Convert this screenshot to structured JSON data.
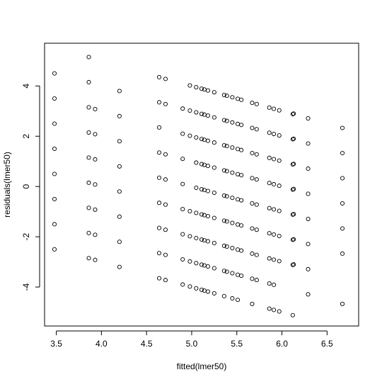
{
  "chart_data": {
    "type": "scatter",
    "xlabel": "fitted(lmer50)",
    "ylabel": "residuals(lmer50)",
    "xlim": [
      3.37,
      6.85
    ],
    "ylim": [
      -5.55,
      5.7
    ],
    "x_ticks": [
      3.5,
      4.0,
      4.5,
      5.0,
      5.5,
      6.0,
      6.5
    ],
    "x_tick_labels": [
      "3.5",
      "4.0",
      "4.5",
      "5.0",
      "5.5",
      "6.0",
      "6.5"
    ],
    "y_ticks": [
      -4,
      -2,
      0,
      2,
      4
    ],
    "y_tick_labels": [
      "-4",
      "-2",
      "0",
      "2",
      "4"
    ],
    "grid": false,
    "legend": "none",
    "marker": "open-circle",
    "color": "#000000",
    "points": [
      [
        3.48,
        4.5
      ],
      [
        3.48,
        3.5
      ],
      [
        3.48,
        2.5
      ],
      [
        3.48,
        1.5
      ],
      [
        3.48,
        0.5
      ],
      [
        3.48,
        -0.5
      ],
      [
        3.48,
        -1.5
      ],
      [
        3.48,
        -2.5
      ],
      [
        3.86,
        5.15
      ],
      [
        3.86,
        4.15
      ],
      [
        3.86,
        3.15
      ],
      [
        3.86,
        2.15
      ],
      [
        3.86,
        1.15
      ],
      [
        3.86,
        0.15
      ],
      [
        3.86,
        -0.85
      ],
      [
        3.86,
        -1.85
      ],
      [
        3.86,
        -2.85
      ],
      [
        3.93,
        3.08
      ],
      [
        3.93,
        2.08
      ],
      [
        3.93,
        1.08
      ],
      [
        3.93,
        0.08
      ],
      [
        3.93,
        -0.92
      ],
      [
        3.93,
        -1.92
      ],
      [
        3.93,
        -2.92
      ],
      [
        4.2,
        3.8
      ],
      [
        4.2,
        2.8
      ],
      [
        4.2,
        1.8
      ],
      [
        4.2,
        0.8
      ],
      [
        4.2,
        -0.2
      ],
      [
        4.2,
        -1.2
      ],
      [
        4.2,
        -2.2
      ],
      [
        4.2,
        -3.2
      ],
      [
        4.64,
        4.35
      ],
      [
        4.64,
        3.35
      ],
      [
        4.64,
        2.35
      ],
      [
        4.64,
        1.35
      ],
      [
        4.64,
        0.35
      ],
      [
        4.64,
        -0.65
      ],
      [
        4.64,
        -1.65
      ],
      [
        4.64,
        -2.65
      ],
      [
        4.64,
        -3.65
      ],
      [
        4.71,
        4.28
      ],
      [
        4.71,
        3.28
      ],
      [
        4.71,
        1.28
      ],
      [
        4.71,
        0.28
      ],
      [
        4.71,
        -0.72
      ],
      [
        4.71,
        -1.72
      ],
      [
        4.71,
        -2.72
      ],
      [
        4.71,
        -3.72
      ],
      [
        4.9,
        3.1
      ],
      [
        4.9,
        2.1
      ],
      [
        4.9,
        1.1
      ],
      [
        4.9,
        0.1
      ],
      [
        4.9,
        -0.9
      ],
      [
        4.9,
        -1.9
      ],
      [
        4.9,
        -2.9
      ],
      [
        4.9,
        -3.9
      ],
      [
        4.98,
        4.02
      ],
      [
        4.98,
        3.02
      ],
      [
        4.98,
        2.02
      ],
      [
        4.98,
        -0.98
      ],
      [
        4.98,
        -1.98
      ],
      [
        4.98,
        -2.98
      ],
      [
        4.98,
        -3.98
      ],
      [
        5.05,
        3.95
      ],
      [
        5.05,
        2.95
      ],
      [
        5.05,
        1.95
      ],
      [
        5.05,
        0.95
      ],
      [
        5.05,
        -0.05
      ],
      [
        5.05,
        -1.05
      ],
      [
        5.05,
        -2.05
      ],
      [
        5.05,
        -3.05
      ],
      [
        5.05,
        -4.05
      ],
      [
        5.11,
        3.89
      ],
      [
        5.11,
        2.89
      ],
      [
        5.11,
        1.89
      ],
      [
        5.11,
        0.89
      ],
      [
        5.11,
        -0.11
      ],
      [
        5.11,
        -1.11
      ],
      [
        5.11,
        -2.11
      ],
      [
        5.11,
        -3.11
      ],
      [
        5.11,
        -4.11
      ],
      [
        5.14,
        3.86
      ],
      [
        5.14,
        2.86
      ],
      [
        5.14,
        1.86
      ],
      [
        5.14,
        0.86
      ],
      [
        5.14,
        -0.14
      ],
      [
        5.14,
        -1.14
      ],
      [
        5.14,
        -2.14
      ],
      [
        5.14,
        -3.14
      ],
      [
        5.14,
        -4.14
      ],
      [
        5.18,
        3.82
      ],
      [
        5.18,
        2.82
      ],
      [
        5.18,
        1.82
      ],
      [
        5.18,
        0.82
      ],
      [
        5.18,
        -0.18
      ],
      [
        5.18,
        -1.18
      ],
      [
        5.18,
        -2.18
      ],
      [
        5.18,
        -3.18
      ],
      [
        5.18,
        -4.18
      ],
      [
        5.25,
        3.75
      ],
      [
        5.25,
        2.75
      ],
      [
        5.25,
        1.75
      ],
      [
        5.25,
        0.75
      ],
      [
        5.25,
        -0.25
      ],
      [
        5.25,
        -1.25
      ],
      [
        5.25,
        -2.25
      ],
      [
        5.25,
        -3.25
      ],
      [
        5.25,
        -4.25
      ],
      [
        5.36,
        3.64
      ],
      [
        5.36,
        2.64
      ],
      [
        5.36,
        1.64
      ],
      [
        5.36,
        0.64
      ],
      [
        5.36,
        -0.36
      ],
      [
        5.36,
        -1.36
      ],
      [
        5.36,
        -2.36
      ],
      [
        5.36,
        -3.36
      ],
      [
        5.36,
        -4.36
      ],
      [
        5.39,
        3.61
      ],
      [
        5.39,
        2.61
      ],
      [
        5.39,
        1.61
      ],
      [
        5.39,
        0.61
      ],
      [
        5.39,
        -0.39
      ],
      [
        5.39,
        -1.39
      ],
      [
        5.39,
        -2.39
      ],
      [
        5.39,
        -3.39
      ],
      [
        5.45,
        3.55
      ],
      [
        5.45,
        2.55
      ],
      [
        5.45,
        1.55
      ],
      [
        5.45,
        0.55
      ],
      [
        5.45,
        -0.45
      ],
      [
        5.45,
        -1.45
      ],
      [
        5.45,
        -2.45
      ],
      [
        5.45,
        -3.45
      ],
      [
        5.45,
        -4.45
      ],
      [
        5.51,
        3.49
      ],
      [
        5.51,
        2.49
      ],
      [
        5.51,
        1.49
      ],
      [
        5.51,
        0.49
      ],
      [
        5.51,
        -0.51
      ],
      [
        5.51,
        -1.51
      ],
      [
        5.51,
        -2.51
      ],
      [
        5.51,
        -3.51
      ],
      [
        5.51,
        -4.51
      ],
      [
        5.55,
        3.45
      ],
      [
        5.55,
        2.45
      ],
      [
        5.55,
        1.45
      ],
      [
        5.55,
        0.45
      ],
      [
        5.55,
        -0.55
      ],
      [
        5.55,
        -1.55
      ],
      [
        5.55,
        -2.55
      ],
      [
        5.55,
        -3.55
      ],
      [
        5.67,
        3.33
      ],
      [
        5.67,
        2.33
      ],
      [
        5.67,
        1.33
      ],
      [
        5.67,
        0.33
      ],
      [
        5.67,
        -0.67
      ],
      [
        5.67,
        -1.67
      ],
      [
        5.67,
        -2.67
      ],
      [
        5.67,
        -3.67
      ],
      [
        5.67,
        -4.67
      ],
      [
        5.72,
        3.28
      ],
      [
        5.72,
        2.28
      ],
      [
        5.72,
        1.28
      ],
      [
        5.72,
        0.28
      ],
      [
        5.72,
        -0.72
      ],
      [
        5.72,
        -1.72
      ],
      [
        5.72,
        -2.72
      ],
      [
        5.72,
        -3.72
      ],
      [
        5.86,
        3.14
      ],
      [
        5.86,
        2.14
      ],
      [
        5.86,
        1.14
      ],
      [
        5.86,
        0.14
      ],
      [
        5.86,
        -0.86
      ],
      [
        5.86,
        -1.86
      ],
      [
        5.86,
        -2.86
      ],
      [
        5.86,
        -3.86
      ],
      [
        5.86,
        -4.86
      ],
      [
        5.91,
        3.09
      ],
      [
        5.91,
        2.09
      ],
      [
        5.91,
        1.09
      ],
      [
        5.91,
        0.09
      ],
      [
        5.91,
        -0.91
      ],
      [
        5.91,
        -1.91
      ],
      [
        5.91,
        -2.91
      ],
      [
        5.91,
        -3.91
      ],
      [
        5.91,
        -4.91
      ],
      [
        5.97,
        3.03
      ],
      [
        5.97,
        2.03
      ],
      [
        5.97,
        1.03
      ],
      [
        5.97,
        0.03
      ],
      [
        5.97,
        -0.97
      ],
      [
        5.97,
        -1.97
      ],
      [
        5.97,
        -2.97
      ],
      [
        5.97,
        -4.97
      ],
      [
        6.12,
        2.88
      ],
      [
        6.12,
        1.88
      ],
      [
        6.12,
        0.88
      ],
      [
        6.12,
        -0.12
      ],
      [
        6.12,
        -1.12
      ],
      [
        6.12,
        -2.12
      ],
      [
        6.12,
        -3.12
      ],
      [
        6.12,
        -5.12
      ],
      [
        6.13,
        2.9
      ],
      [
        6.13,
        1.9
      ],
      [
        6.13,
        0.9
      ],
      [
        6.13,
        -0.1
      ],
      [
        6.13,
        -1.1
      ],
      [
        6.13,
        -2.1
      ],
      [
        6.13,
        -3.1
      ],
      [
        6.29,
        2.71
      ],
      [
        6.29,
        1.71
      ],
      [
        6.29,
        0.71
      ],
      [
        6.29,
        -0.29
      ],
      [
        6.29,
        -1.29
      ],
      [
        6.29,
        -2.29
      ],
      [
        6.29,
        -3.29
      ],
      [
        6.29,
        -4.29
      ],
      [
        6.67,
        2.33
      ],
      [
        6.67,
        1.33
      ],
      [
        6.67,
        0.33
      ],
      [
        6.67,
        -0.67
      ],
      [
        6.67,
        -1.67
      ],
      [
        6.67,
        -2.67
      ],
      [
        6.67,
        -4.67
      ]
    ]
  }
}
